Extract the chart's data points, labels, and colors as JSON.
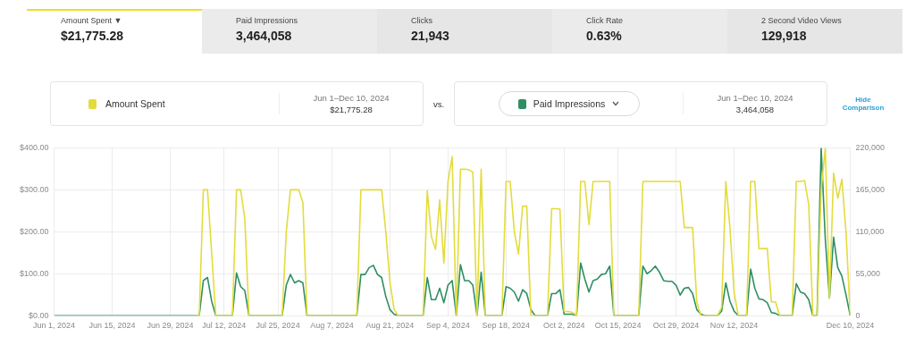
{
  "chart_data": {
    "type": "line",
    "annotations": [
      "Amount Spent ▼",
      "$21,775.28",
      "Paid Impressions",
      "3,464,058",
      "Clicks",
      "21,943",
      "Click Rate",
      "0.63%",
      "2 Second Video Views",
      "129,918",
      "Jun 1–Dec 10, 2024",
      "$21,775.28",
      "vs.",
      "Jun 1–Dec 10, 2024",
      "3,464,058",
      "Hide Comparison"
    ],
    "x": [
      "2024-06-01",
      "2024-07-05",
      "2024-07-06",
      "2024-07-07",
      "2024-07-08",
      "2024-07-09",
      "2024-07-10",
      "2024-07-14",
      "2024-07-15",
      "2024-07-16",
      "2024-07-17",
      "2024-07-18",
      "2024-07-26",
      "2024-07-27",
      "2024-07-28",
      "2024-07-29",
      "2024-07-30",
      "2024-07-31",
      "2024-08-01",
      "2024-08-13",
      "2024-08-14",
      "2024-08-15",
      "2024-08-16",
      "2024-08-17",
      "2024-08-18",
      "2024-08-19",
      "2024-08-20",
      "2024-08-21",
      "2024-08-22",
      "2024-08-23",
      "2024-08-29",
      "2024-08-30",
      "2024-08-31",
      "2024-09-01",
      "2024-09-02",
      "2024-09-03",
      "2024-09-04",
      "2024-09-05",
      "2024-09-06",
      "2024-09-07",
      "2024-09-08",
      "2024-09-09",
      "2024-09-10",
      "2024-09-11",
      "2024-09-12",
      "2024-09-13",
      "2024-09-16",
      "2024-09-17",
      "2024-09-18",
      "2024-09-19",
      "2024-09-20",
      "2024-09-21",
      "2024-09-22",
      "2024-09-23",
      "2024-09-24",
      "2024-09-25",
      "2024-09-28",
      "2024-09-29",
      "2024-09-30",
      "2024-10-01",
      "2024-10-02",
      "2024-10-03",
      "2024-10-04",
      "2024-10-05",
      "2024-10-06",
      "2024-10-07",
      "2024-10-08",
      "2024-10-09",
      "2024-10-10",
      "2024-10-11",
      "2024-10-12",
      "2024-10-13",
      "2024-10-14",
      "2024-10-20",
      "2024-10-21",
      "2024-10-22",
      "2024-10-23",
      "2024-10-24",
      "2024-10-25",
      "2024-10-26",
      "2024-10-27",
      "2024-10-28",
      "2024-10-29",
      "2024-10-30",
      "2024-10-31",
      "2024-11-01",
      "2024-11-02",
      "2024-11-03",
      "2024-11-04",
      "2024-11-05",
      "2024-11-08",
      "2024-11-09",
      "2024-11-10",
      "2024-11-11",
      "2024-11-12",
      "2024-11-13",
      "2024-11-15",
      "2024-11-16",
      "2024-11-17",
      "2024-11-18",
      "2024-11-19",
      "2024-11-20",
      "2024-11-21",
      "2024-11-22",
      "2024-11-23",
      "2024-11-26",
      "2024-11-27",
      "2024-11-28",
      "2024-11-29",
      "2024-11-30",
      "2024-12-01",
      "2024-12-02",
      "2024-12-03",
      "2024-12-04",
      "2024-12-05",
      "2024-12-06",
      "2024-12-07",
      "2024-12-08",
      "2024-12-09",
      "2024-12-10"
    ],
    "series": [
      {
        "name": "Amount Spent",
        "color": "#e3dc3c",
        "values": [
          null,
          0,
          0,
          300,
          300,
          150,
          0,
          0,
          300,
          300,
          230,
          0,
          0,
          200,
          300,
          300,
          300,
          270,
          0,
          0,
          300,
          300,
          300,
          300,
          300,
          300,
          200,
          80,
          15,
          0,
          0,
          298,
          188,
          158,
          276,
          125,
          320,
          379,
          0,
          349,
          349,
          348,
          342,
          0,
          349,
          0,
          0,
          0,
          320,
          320,
          200,
          147,
          261,
          261,
          0,
          0,
          0,
          255,
          255,
          254,
          10,
          10,
          8,
          0,
          320,
          320,
          217,
          320,
          320,
          320,
          320,
          320,
          0,
          0,
          320,
          320,
          320,
          320,
          320,
          320,
          320,
          320,
          320,
          320,
          210,
          210,
          210,
          33,
          0,
          0,
          0,
          20,
          320,
          210,
          56,
          0,
          0,
          320,
          320,
          160,
          160,
          160,
          33,
          33,
          0,
          0,
          320,
          320,
          322,
          265,
          0,
          0,
          300,
          400,
          41,
          340,
          280,
          325,
          198,
          0
        ]
      },
      {
        "name": "Paid Impressions",
        "color": "#2e8f63",
        "axis": "y2",
        "values": [
          0,
          0,
          0,
          46000,
          50000,
          19000,
          0,
          0,
          56000,
          38000,
          33000,
          0,
          0,
          40000,
          54000,
          43000,
          46000,
          43000,
          0,
          0,
          54000,
          54000,
          63000,
          66000,
          54000,
          50000,
          25000,
          8000,
          2000,
          0,
          0,
          50000,
          21000,
          21000,
          36000,
          17000,
          40000,
          46000,
          0,
          67000,
          46000,
          46000,
          40000,
          0,
          57000,
          0,
          0,
          0,
          38000,
          36000,
          31000,
          19000,
          34000,
          29000,
          8000,
          0,
          0,
          29000,
          29000,
          34000,
          2000,
          2000,
          2000,
          0,
          69000,
          48000,
          31000,
          46000,
          48000,
          54000,
          55000,
          65000,
          0,
          0,
          65000,
          55000,
          59000,
          65000,
          57000,
          46000,
          45000,
          45000,
          40000,
          27000,
          36000,
          37000,
          29000,
          8000,
          2000,
          0,
          0,
          6000,
          43000,
          19000,
          6000,
          0,
          0,
          61000,
          36000,
          22000,
          21000,
          17000,
          4000,
          3000,
          0,
          0,
          42000,
          31000,
          29000,
          21000,
          0,
          0,
          220000,
          100000,
          23000,
          103000,
          63000,
          52000,
          27000,
          0
        ]
      }
    ],
    "xlim": [
      "2024-06-01",
      "2024-12-10"
    ],
    "xticks": [
      {
        "value": "2024-06-01",
        "label": "Jun 1, 2024"
      },
      {
        "value": "2024-06-15",
        "label": "Jun 15, 2024"
      },
      {
        "value": "2024-06-29",
        "label": "Jun 29, 2024"
      },
      {
        "value": "2024-07-12",
        "label": "Jul 12, 2024"
      },
      {
        "value": "2024-07-25",
        "label": "Jul 25, 2024"
      },
      {
        "value": "2024-08-07",
        "label": "Aug 7, 2024"
      },
      {
        "value": "2024-08-21",
        "label": "Aug 21, 2024"
      },
      {
        "value": "2024-09-04",
        "label": "Sep 4, 2024"
      },
      {
        "value": "2024-09-18",
        "label": "Sep 18, 2024"
      },
      {
        "value": "2024-10-02",
        "label": "Oct 2, 2024"
      },
      {
        "value": "2024-10-15",
        "label": "Oct 15, 2024"
      },
      {
        "value": "2024-10-29",
        "label": "Oct 29, 2024"
      },
      {
        "value": "2024-11-12",
        "label": "Nov 12, 2024"
      },
      {
        "value": "2024-12-10",
        "label": "Dec 10, 2024"
      }
    ],
    "ylim": [
      0,
      400
    ],
    "yticks": [
      {
        "value": 0,
        "label": "$0.00"
      },
      {
        "value": 100,
        "label": "$100.00"
      },
      {
        "value": 200,
        "label": "$200.00"
      },
      {
        "value": 300,
        "label": "$300.00"
      },
      {
        "value": 400,
        "label": "$400.00"
      }
    ],
    "y2lim": [
      0,
      220000
    ],
    "y2ticks": [
      0,
      {
        "value": 55000,
        "label": "55,000"
      },
      {
        "value": 110000,
        "label": "110,000"
      },
      {
        "value": 165000,
        "label": "165,000"
      },
      {
        "value": 220000,
        "label": "220,000"
      }
    ],
    "grid": true,
    "legend": "top",
    "marker": "none",
    "line_style": "solid"
  }
}
